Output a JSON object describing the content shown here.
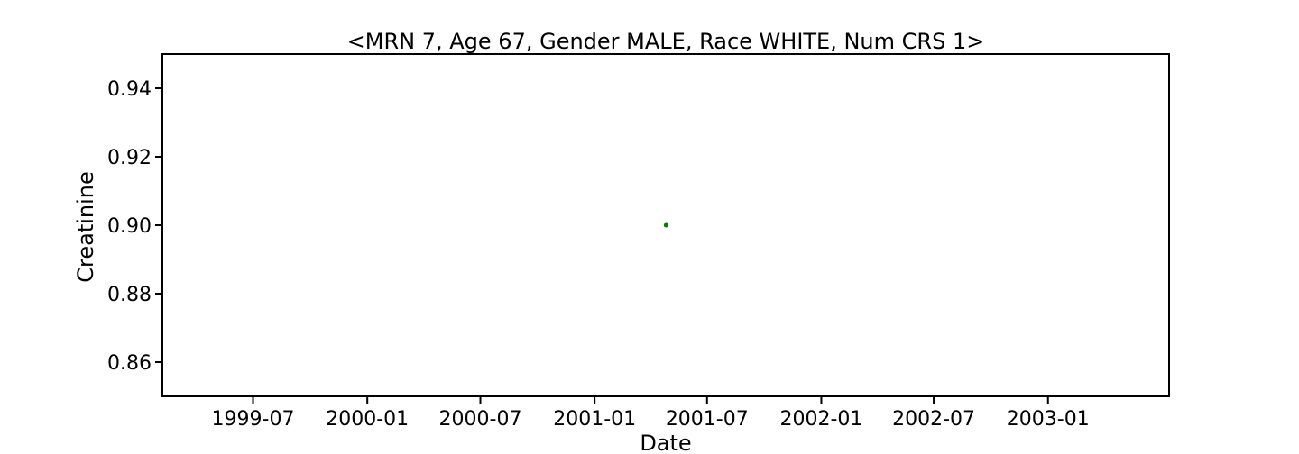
{
  "chart_data": {
    "type": "scatter",
    "title": "<MRN 7, Age 67, Gender MALE, Race WHITE, Num CRS 1>",
    "xlabel": "Date",
    "ylabel": "Creatinine",
    "xlim": [
      "1999-02-05",
      "2003-07-15"
    ],
    "ylim": [
      0.85,
      0.95
    ],
    "x_ticks": [
      "1999-07",
      "2000-01",
      "2000-07",
      "2001-01",
      "2001-07",
      "2002-01",
      "2002-07",
      "2003-01"
    ],
    "y_ticks": [
      "0.86",
      "0.88",
      "0.90",
      "0.92",
      "0.94"
    ],
    "grid": false,
    "series": [
      {
        "color": "#008000",
        "points": [
          {
            "x": "2001-04-26",
            "y": 0.9
          }
        ]
      }
    ]
  }
}
